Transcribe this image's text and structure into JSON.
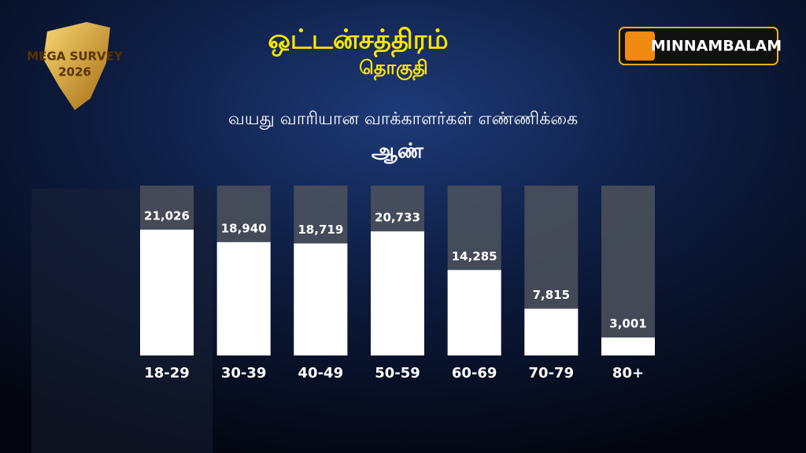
{
  "chart_data": {
    "type": "bar",
    "title": "ஒட்டன்சத்திரம்",
    "subtitle": "தொகுதி",
    "chart_title": "வயது வாரியான வாக்காளர்கள் எண்ணிக்கை",
    "group": "ஆண்",
    "brand": "MINNAMBALAM",
    "badge_top": "MEGA SURVEY",
    "badge_year": "2026",
    "categories": [
      "18-29",
      "30-39",
      "40-49",
      "50-59",
      "60-69",
      "70-79",
      "80+"
    ],
    "values": [
      21026,
      18940,
      18719,
      20733,
      14285,
      7815,
      3001
    ],
    "value_labels": [
      "21,026",
      "18,940",
      "18,719",
      "20,733",
      "14,285",
      "7,815",
      "3,001"
    ],
    "color": "#ffffff",
    "track_color": "#4e525c"
  }
}
